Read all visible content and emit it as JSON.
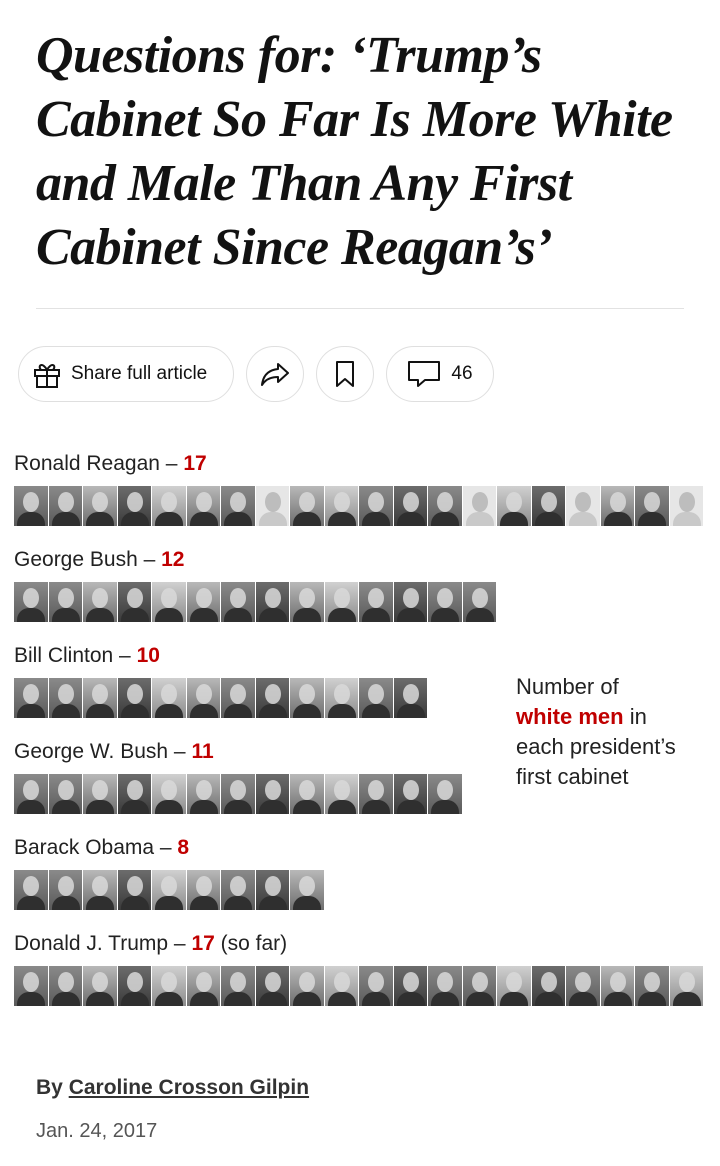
{
  "article": {
    "headline": "Questions for: ‘Trump’s Cabinet So Far Is More White and Male Than Any First Cabinet Since Reagan’s’"
  },
  "toolbar": {
    "share_label": "Share full article",
    "comments_count": "46",
    "icons": [
      "gift-icon",
      "share-arrow-icon",
      "bookmark-icon",
      "comment-icon"
    ]
  },
  "infographic": {
    "accent_color": "#c00000",
    "note": {
      "line1": "Number of",
      "emph": "white men",
      "line2": " in",
      "line3": "each president’s",
      "line4": "first cabinet"
    },
    "rows": [
      {
        "president": "Ronald Reagan",
        "separator": " – ",
        "count": "17",
        "suffix": ""
      },
      {
        "president": "George Bush",
        "separator": " – ",
        "count": "12",
        "suffix": ""
      },
      {
        "president": "Bill Clinton",
        "separator": " – ",
        "count": "10",
        "suffix": ""
      },
      {
        "president": "George W. Bush",
        "separator": " – ",
        "count": "11",
        "suffix": ""
      },
      {
        "president": "Barack Obama",
        "separator": " – ",
        "count": "8",
        "suffix": ""
      },
      {
        "president": "Donald J. Trump",
        "separator": " – ",
        "count": "17",
        "suffix": " (so far)"
      }
    ]
  },
  "byline": {
    "prefix": "By ",
    "author": "Caroline Crosson Gilpin",
    "date": "Jan. 24, 2017"
  }
}
